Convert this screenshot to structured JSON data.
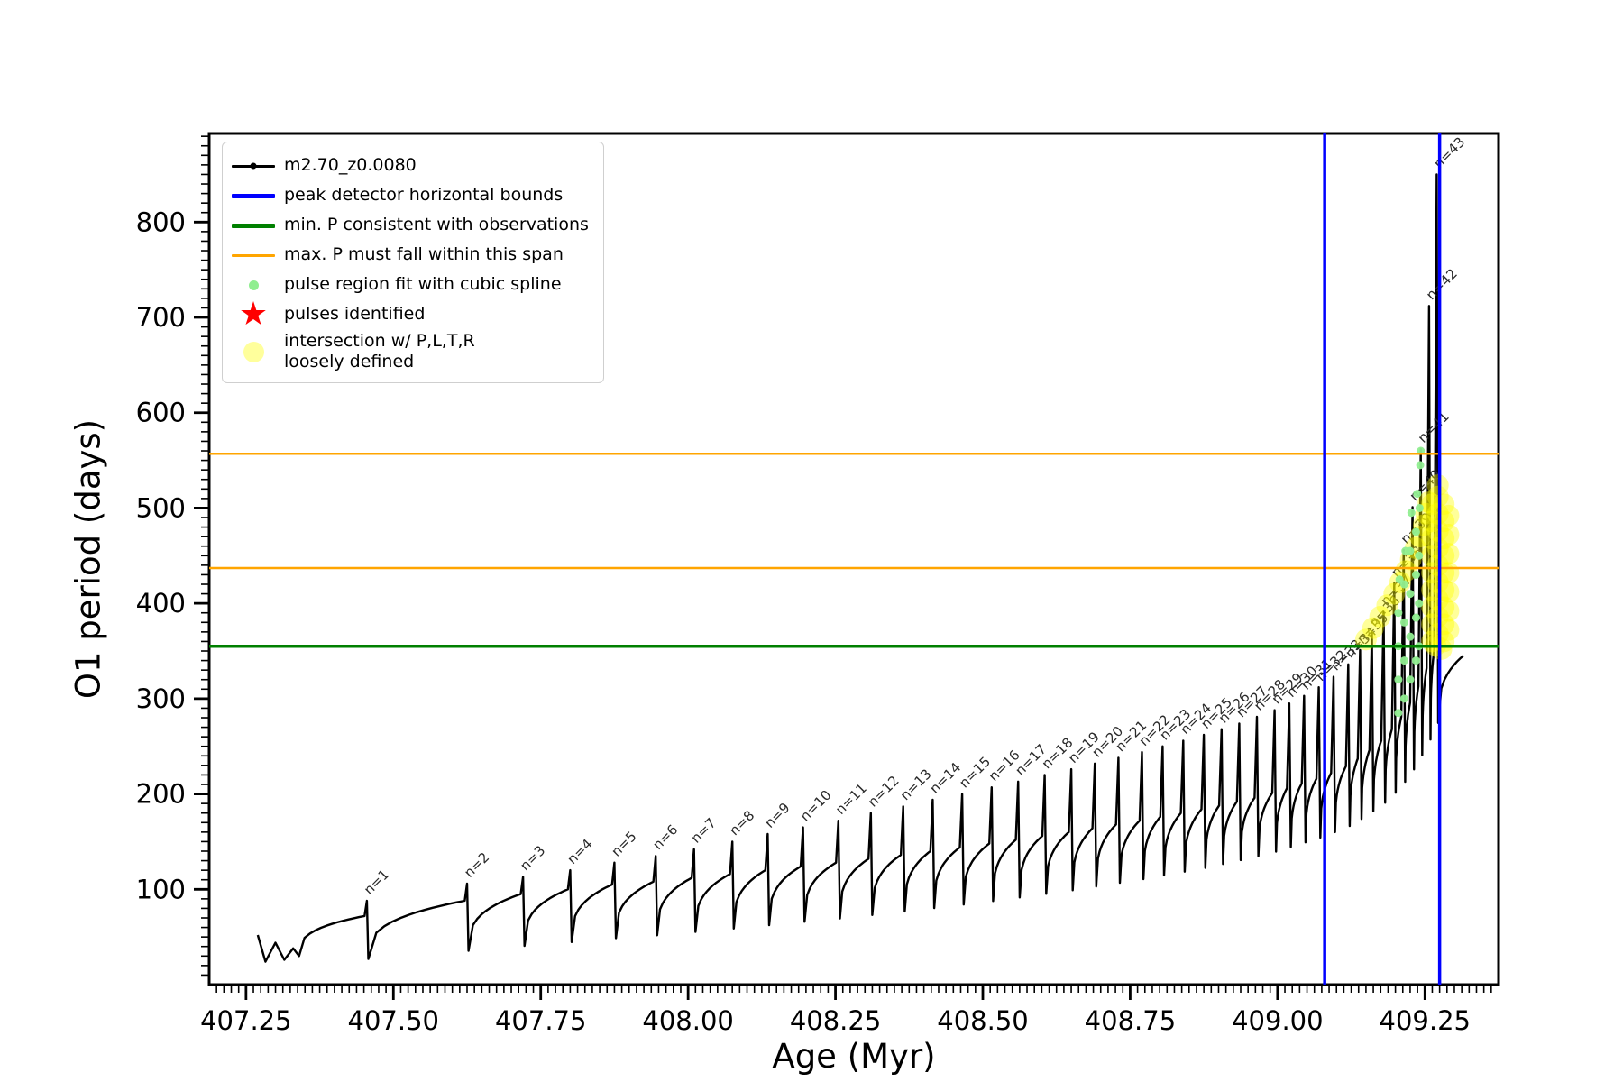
{
  "figure": {
    "background": "#ffffff"
  },
  "chart_data": {
    "type": "line",
    "title": "",
    "xlabel": "Age (Myr)",
    "ylabel": "O1 period (days)",
    "xlim": [
      407.1875,
      409.375
    ],
    "ylim": [
      0,
      893
    ],
    "xticks": [
      407.25,
      407.5,
      407.75,
      408.0,
      408.25,
      408.5,
      408.75,
      409.0,
      409.25
    ],
    "yticks": [
      100,
      200,
      300,
      400,
      500,
      600,
      700,
      800
    ],
    "x_minor_step": 0.0125,
    "y_minor_step": 10,
    "grid": false,
    "series_name": "m2.70_z0.0080",
    "series_color": "#000000",
    "intro_points": [
      [
        407.27,
        52
      ],
      [
        407.283,
        24
      ],
      [
        407.3,
        44
      ],
      [
        407.315,
        26
      ],
      [
        407.33,
        38
      ],
      [
        407.34,
        30
      ]
    ],
    "tail_point": [
      409.315,
      345
    ],
    "pulses": [
      [
        1,
        407.455,
        72,
        88
      ],
      [
        2,
        407.625,
        88,
        106
      ],
      [
        3,
        407.72,
        95,
        113
      ],
      [
        4,
        407.8,
        100,
        120
      ],
      [
        5,
        407.875,
        105,
        128
      ],
      [
        6,
        407.945,
        108,
        135
      ],
      [
        7,
        408.01,
        112,
        142
      ],
      [
        8,
        408.075,
        116,
        150
      ],
      [
        9,
        408.135,
        120,
        158
      ],
      [
        10,
        408.195,
        124,
        165
      ],
      [
        11,
        408.255,
        128,
        172
      ],
      [
        12,
        408.31,
        132,
        180
      ],
      [
        13,
        408.365,
        136,
        187
      ],
      [
        14,
        408.415,
        140,
        194
      ],
      [
        15,
        408.465,
        144,
        200
      ],
      [
        16,
        408.515,
        148,
        207
      ],
      [
        17,
        408.56,
        152,
        213
      ],
      [
        18,
        408.605,
        156,
        220
      ],
      [
        19,
        408.65,
        160,
        226
      ],
      [
        20,
        408.69,
        164,
        232
      ],
      [
        21,
        408.73,
        168,
        238
      ],
      [
        22,
        408.77,
        172,
        244
      ],
      [
        23,
        408.805,
        176,
        250
      ],
      [
        24,
        408.84,
        180,
        256
      ],
      [
        25,
        408.875,
        184,
        262
      ],
      [
        26,
        408.905,
        188,
        268
      ],
      [
        27,
        408.935,
        192,
        274
      ],
      [
        28,
        408.965,
        196,
        281
      ],
      [
        29,
        408.995,
        201,
        288
      ],
      [
        30,
        409.02,
        206,
        295
      ],
      [
        31,
        409.045,
        211,
        303
      ],
      [
        32,
        409.07,
        216,
        312
      ],
      [
        33,
        409.095,
        222,
        323
      ],
      [
        34,
        409.12,
        229,
        336
      ],
      [
        35,
        409.14,
        237,
        351
      ],
      [
        36,
        409.16,
        246,
        369
      ],
      [
        37,
        409.18,
        256,
        391
      ],
      [
        38,
        409.198,
        268,
        421
      ],
      [
        39,
        409.214,
        281,
        456
      ],
      [
        40,
        409.229,
        296,
        501
      ],
      [
        41,
        409.243,
        313,
        562
      ],
      [
        42,
        409.257,
        332,
        712
      ],
      [
        43,
        409.27,
        352,
        850
      ]
    ],
    "pulse_label_prefix": "n=",
    "vlines": {
      "color": "#0000ff",
      "width": 3.5,
      "positions": [
        409.08,
        409.275
      ],
      "label": "peak detector horizontal bounds"
    },
    "hline_green": {
      "color": "#008000",
      "width": 3.5,
      "positions": [
        355
      ],
      "label": "min. P consistent with observations"
    },
    "hlines_orange": {
      "color": "#ffa500",
      "width": 2.5,
      "positions": [
        437,
        557
      ],
      "label": "max. P must fall within this span"
    },
    "spline_scatter": {
      "color": "#90ee90",
      "radius": 4.5,
      "opacity": 0.95,
      "points": [
        [
          409.205,
          285
        ],
        [
          409.205,
          320
        ],
        [
          409.205,
          355
        ],
        [
          409.205,
          390
        ],
        [
          409.207,
          425
        ],
        [
          409.215,
          300
        ],
        [
          409.215,
          340
        ],
        [
          409.215,
          380
        ],
        [
          409.215,
          420
        ],
        [
          409.217,
          455
        ],
        [
          409.225,
          320
        ],
        [
          409.225,
          365
        ],
        [
          409.225,
          410
        ],
        [
          409.225,
          455
        ],
        [
          409.227,
          495
        ],
        [
          409.235,
          340
        ],
        [
          409.235,
          385
        ],
        [
          409.235,
          430
        ],
        [
          409.235,
          475
        ],
        [
          409.237,
          515
        ],
        [
          409.24,
          355
        ],
        [
          409.24,
          400
        ],
        [
          409.24,
          450
        ],
        [
          409.241,
          500
        ],
        [
          409.242,
          545
        ],
        [
          409.243,
          560
        ]
      ]
    },
    "intersection_scatter": {
      "color": "#ffff00",
      "radius": 12,
      "opacity": 0.4,
      "points": [
        [
          409.15,
          362
        ],
        [
          409.162,
          374
        ],
        [
          409.174,
          386
        ],
        [
          409.186,
          398
        ],
        [
          409.198,
          410
        ],
        [
          409.208,
          422
        ],
        [
          409.218,
          434
        ],
        [
          409.226,
          446
        ],
        [
          409.234,
          458
        ],
        [
          409.242,
          470
        ],
        [
          409.248,
          482
        ],
        [
          409.252,
          494
        ],
        [
          409.256,
          506
        ],
        [
          409.262,
          360
        ],
        [
          409.262,
          378
        ],
        [
          409.262,
          396
        ],
        [
          409.262,
          414
        ],
        [
          409.262,
          432
        ],
        [
          409.262,
          450
        ],
        [
          409.262,
          468
        ],
        [
          409.262,
          486
        ],
        [
          409.262,
          504
        ],
        [
          409.272,
          368
        ],
        [
          409.272,
          386
        ],
        [
          409.272,
          404
        ],
        [
          409.272,
          422
        ],
        [
          409.272,
          440
        ],
        [
          409.272,
          458
        ],
        [
          409.272,
          476
        ],
        [
          409.272,
          494
        ],
        [
          409.272,
          512
        ],
        [
          409.272,
          524
        ],
        [
          409.282,
          360
        ],
        [
          409.282,
          378
        ],
        [
          409.282,
          396
        ],
        [
          409.282,
          414
        ],
        [
          409.282,
          432
        ],
        [
          409.282,
          450
        ],
        [
          409.282,
          468
        ],
        [
          409.282,
          486
        ],
        [
          409.282,
          504
        ],
        [
          409.29,
          372
        ],
        [
          409.29,
          392
        ],
        [
          409.29,
          412
        ],
        [
          409.29,
          432
        ],
        [
          409.29,
          452
        ],
        [
          409.29,
          472
        ],
        [
          409.29,
          492
        ],
        [
          409.268,
          356
        ],
        [
          409.278,
          352
        ]
      ]
    },
    "legend": {
      "items": [
        {
          "type": "line-dot",
          "color": "#000000",
          "label": "m2.70_z0.0080"
        },
        {
          "type": "hline-thick",
          "color": "#0000ff",
          "label": "peak detector horizontal bounds"
        },
        {
          "type": "hline-thick",
          "color": "#008000",
          "label": "min. P consistent with observations"
        },
        {
          "type": "line-thin",
          "color": "#ffa500",
          "label": "max. P must fall within this span"
        },
        {
          "type": "dot-small",
          "color": "#90ee90",
          "label": "pulse region fit with cubic spline"
        },
        {
          "type": "star",
          "color": "#ff0000",
          "label": "pulses identified"
        },
        {
          "type": "dot-big",
          "color": "#ffff9c",
          "label": "intersection w/ P,L,T,R\nloosely defined"
        }
      ]
    }
  }
}
